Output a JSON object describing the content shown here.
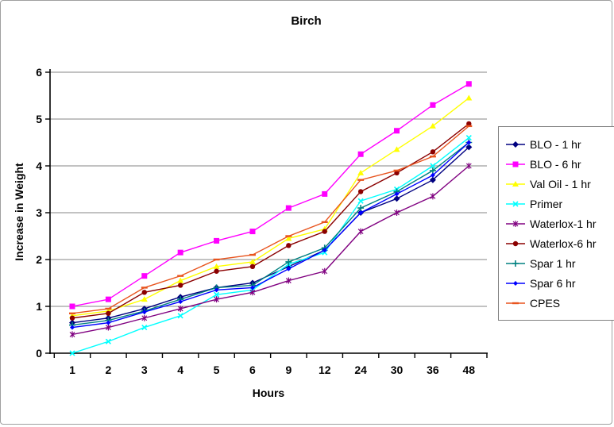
{
  "title": "Birch",
  "chart_data": {
    "type": "line",
    "title": "Birch",
    "xlabel": "Hours",
    "ylabel": "Increase in Weight",
    "ylim": [
      0,
      6
    ],
    "y_ticks": [
      0,
      1,
      2,
      3,
      4,
      5,
      6
    ],
    "grid": true,
    "grid_color": "#848484",
    "legend_position": "right",
    "categories": [
      "1",
      "2",
      "3",
      "4",
      "5",
      "6",
      "9",
      "12",
      "24",
      "30",
      "36",
      "48"
    ],
    "series": [
      {
        "name": "BLO - 1 hr",
        "color": "#000080",
        "marker": "diamond",
        "values": [
          0.65,
          0.75,
          0.95,
          1.2,
          1.4,
          1.5,
          1.85,
          2.2,
          3.0,
          3.3,
          3.7,
          4.4
        ]
      },
      {
        "name": "BLO - 6 hr",
        "color": "#ff00ff",
        "marker": "square",
        "values": [
          1.0,
          1.15,
          1.65,
          2.15,
          2.4,
          2.6,
          3.1,
          3.4,
          4.25,
          4.75,
          5.3,
          5.75
        ]
      },
      {
        "name": "Val Oil - 1 hr",
        "color": "#ffff00",
        "marker": "triangle",
        "values": [
          0.8,
          0.9,
          1.15,
          1.55,
          1.85,
          1.95,
          2.45,
          2.65,
          3.85,
          4.35,
          4.85,
          5.45
        ]
      },
      {
        "name": "Primer",
        "color": "#00ffff",
        "marker": "x",
        "values": [
          0.0,
          0.25,
          0.55,
          0.8,
          1.25,
          1.35,
          1.9,
          2.15,
          3.25,
          3.5,
          4.0,
          4.6
        ]
      },
      {
        "name": "Waterlox-1 hr",
        "color": "#800080",
        "marker": "asterisk",
        "values": [
          0.4,
          0.55,
          0.75,
          0.95,
          1.15,
          1.3,
          1.55,
          1.75,
          2.6,
          3.0,
          3.35,
          4.0
        ]
      },
      {
        "name": "Waterlox-6 hr",
        "color": "#8b0000",
        "marker": "circle",
        "values": [
          0.75,
          0.85,
          1.3,
          1.45,
          1.75,
          1.85,
          2.3,
          2.6,
          3.45,
          3.85,
          4.3,
          4.9
        ]
      },
      {
        "name": "Spar 1 hr",
        "color": "#008080",
        "marker": "plus",
        "values": [
          0.6,
          0.7,
          0.9,
          1.15,
          1.4,
          1.45,
          1.95,
          2.25,
          3.1,
          3.45,
          3.9,
          4.5
        ]
      },
      {
        "name": "Spar 6 hr",
        "color": "#0000ff",
        "marker": "smalldiamond",
        "values": [
          0.55,
          0.65,
          0.88,
          1.1,
          1.35,
          1.4,
          1.8,
          2.2,
          3.0,
          3.4,
          3.8,
          4.5
        ]
      },
      {
        "name": "CPES",
        "color": "#e8541e",
        "marker": "dash",
        "values": [
          0.85,
          0.95,
          1.4,
          1.65,
          2.0,
          2.1,
          2.5,
          2.8,
          3.7,
          3.9,
          4.2,
          4.85
        ]
      }
    ]
  }
}
